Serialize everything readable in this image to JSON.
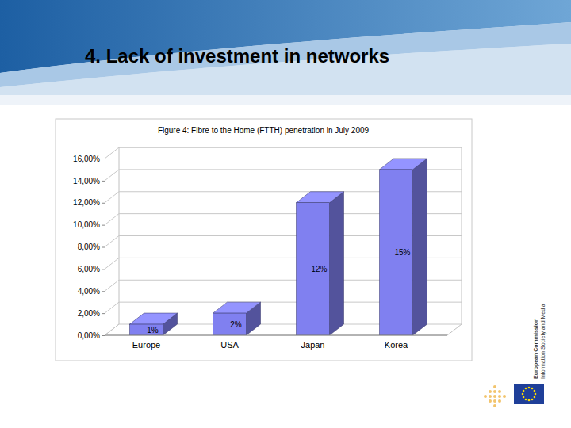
{
  "slide": {
    "title": "4. Lack of investment in networks",
    "logo": [
      "European Commission",
      "Information Society and Media"
    ]
  },
  "chart_data": {
    "type": "bar",
    "title": "Figure 4: Fibre to the Home (FTTH) penetration in July 2009",
    "categories": [
      "Europe",
      "USA",
      "Japan",
      "Korea"
    ],
    "values": [
      1,
      2,
      12,
      15
    ],
    "value_labels": [
      "1%",
      "2%",
      "12%",
      "15%"
    ],
    "color": "#8080f0",
    "ylim": [
      0,
      16
    ],
    "yticks": [
      {
        "value": 0,
        "label": "0,00%"
      },
      {
        "value": 2,
        "label": "2,00%"
      },
      {
        "value": 4,
        "label": "4,00%"
      },
      {
        "value": 6,
        "label": "6,00%"
      },
      {
        "value": 8,
        "label": "8,00%"
      },
      {
        "value": 10,
        "label": "10,00%"
      },
      {
        "value": 12,
        "label": "12,00%"
      },
      {
        "value": 14,
        "label": "14,00%"
      },
      {
        "value": 16,
        "label": "16,00%"
      }
    ],
    "grid": true,
    "data_labels": true
  }
}
